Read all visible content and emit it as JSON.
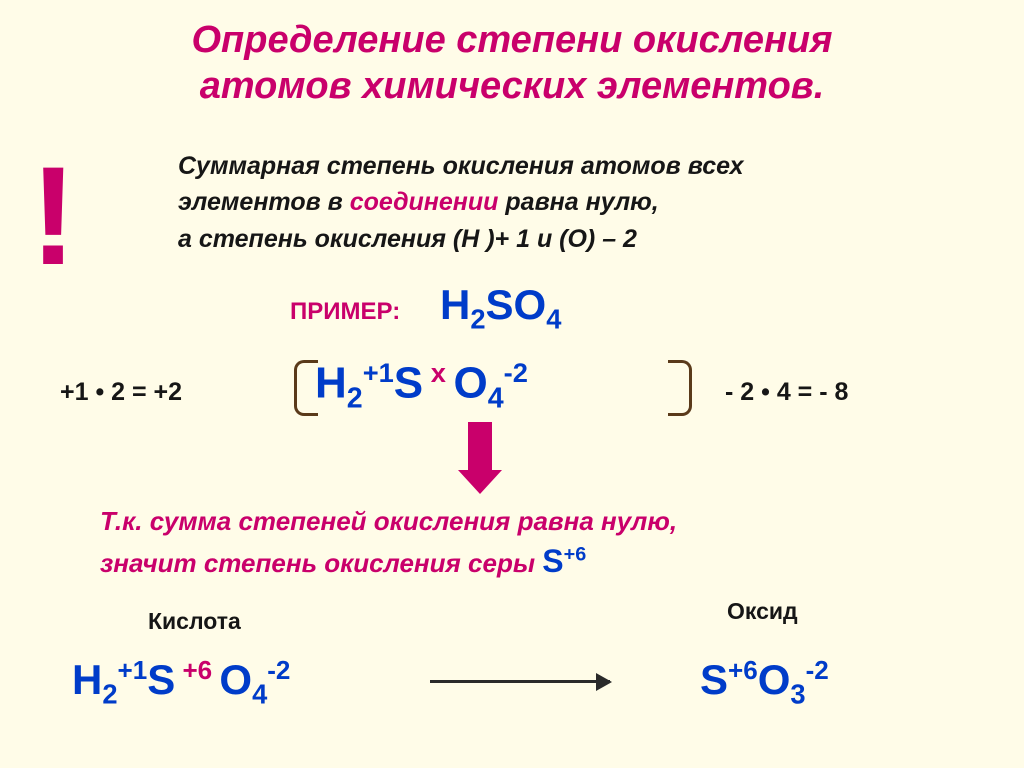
{
  "colors": {
    "bg": "#fffce8",
    "magenta": "#c9006b",
    "black": "#161616",
    "dark": "#2a1a0a",
    "blue": "#003cc9"
  },
  "title": {
    "line1": "Определение степени окисления",
    "line2": "атомов химических элементов.",
    "fontsize": 38,
    "color": "#c9006b"
  },
  "exclamation": {
    "char": "!",
    "fontsize": 140,
    "color": "#c9006b"
  },
  "intro": {
    "l1a": "Суммарная степень окисления атомов всех",
    "l2a": "элементов в ",
    "l2b": "соединении",
    "l2c": " равна нулю,",
    "l3a": "а степень окисления (Н )+ 1 и  (О) – 2",
    "fontsize": 25,
    "color": "#161616"
  },
  "example": {
    "label": "ПРИМЕР:",
    "label_color": "#c9006b",
    "label_fontsize": 24,
    "formula_color": "#003cc9",
    "formula_fontsize": 42,
    "H": "H",
    "two": "2",
    "S": "S",
    "O": "O",
    "four": "4"
  },
  "calc": {
    "left": "+1 • 2  =  +2",
    "right": "- 2 • 4  =  - 8",
    "fontsize": 25,
    "color": "#161616"
  },
  "center": {
    "fontsize": 44,
    "color": "#003cc9",
    "H": "H",
    "sub2": "2",
    "sup1": "+1",
    "S": "S",
    "x": " x ",
    "O": "O",
    "sub4": "4",
    "supm2": "-2"
  },
  "sum": {
    "l1": "Т.к. сумма степеней окисления равна нулю,",
    "l2a": "значит степень окисления серы   ",
    "l2b": "S",
    "l2c": "+6",
    "fontsize": 26,
    "color": "#c9006b",
    "s_color": "#003cc9"
  },
  "labels": {
    "acid": "Кислота",
    "oxide": "Оксид",
    "fontsize": 23,
    "color": "#161616"
  },
  "final": {
    "fontsize": 42,
    "color": "#003cc9",
    "acid": {
      "H": "H",
      "s2": "2",
      "p1": "+1",
      "S": "S",
      "p6": " +6 ",
      "O": "O",
      "s4": "4",
      "m2": "-2"
    },
    "oxide": {
      "S": "S",
      "p6": "+6",
      "O": "O",
      "s3": "3",
      "m2": "-2"
    }
  }
}
